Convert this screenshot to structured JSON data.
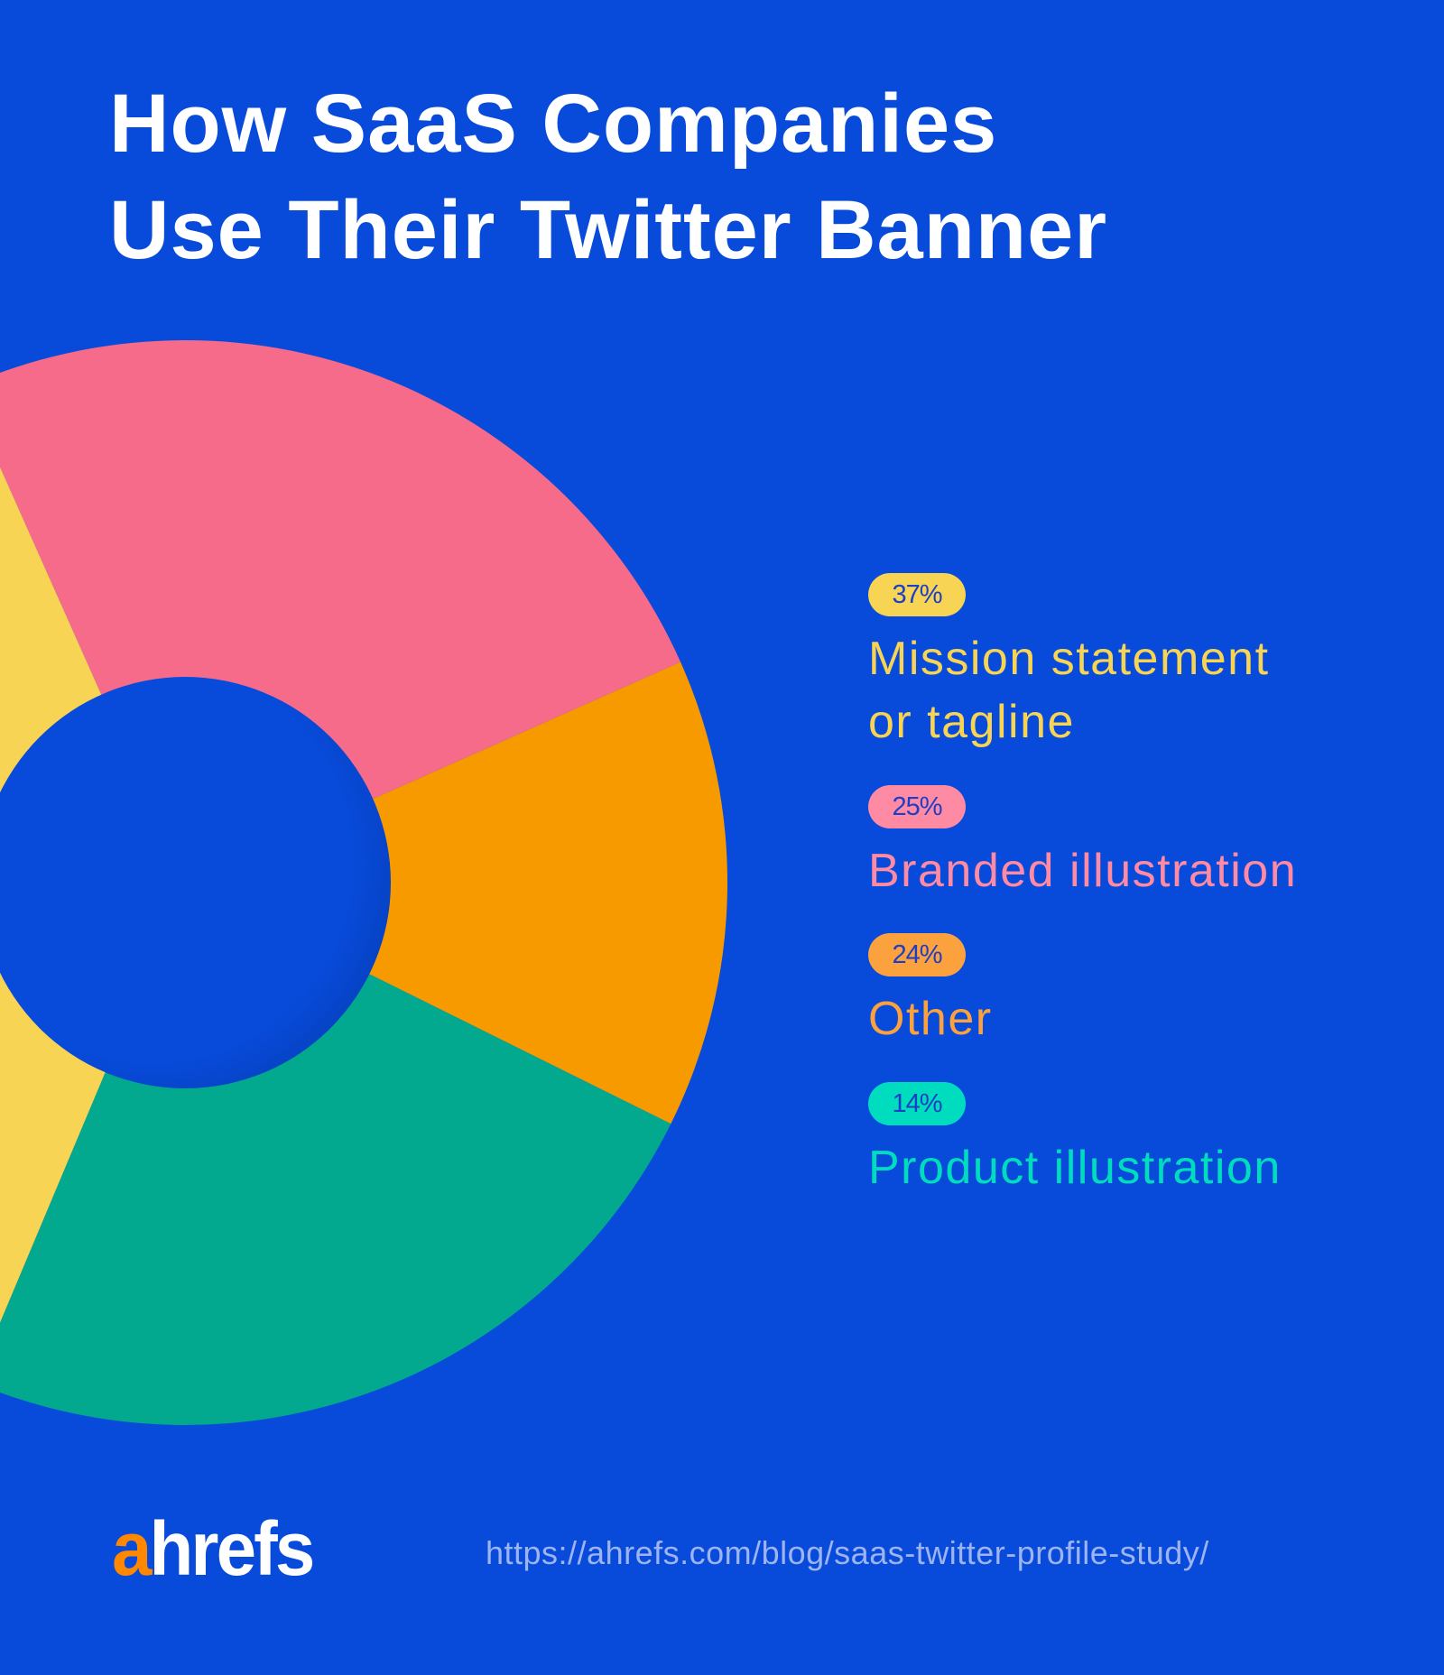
{
  "title": {
    "line1": "How SaaS Companies",
    "line2": "Use Their Twitter Banner"
  },
  "chart_data": {
    "type": "pie",
    "style": "donut",
    "title": "How SaaS Companies Use Their Twitter Banner",
    "legend_placement": "right",
    "slices_as_drawn_clockwise_from_top": [
      {
        "value": 25,
        "color": "#F76B8A"
      },
      {
        "value": 14,
        "color": "#F79A00"
      },
      {
        "value": 24,
        "color": "#02A98F"
      },
      {
        "value": 37,
        "color": "#F7D454"
      }
    ],
    "series": [
      {
        "name": "Mission statement or tagline",
        "value": 37,
        "label": "37%",
        "color": "#F7D454"
      },
      {
        "name": "Branded illustration",
        "value": 25,
        "label": "25%",
        "color": "#FF8AA3"
      },
      {
        "name": "Other",
        "value": 24,
        "label": "24%",
        "color": "#FBA23F"
      },
      {
        "name": "Product illustration",
        "value": 14,
        "label": "14%",
        "color": "#00DDBE"
      }
    ]
  },
  "legend": [
    {
      "badge": "37%",
      "line1": "Mission statement",
      "line2": "or tagline"
    },
    {
      "badge": "25%",
      "line1": "Branded illustration"
    },
    {
      "badge": "24%",
      "line1": "Other"
    },
    {
      "badge": "14%",
      "line1": "Product illustration"
    }
  ],
  "footer": {
    "logo": "ahrefs",
    "logo_a": "a",
    "logo_rest": "hrefs",
    "url": "https://ahrefs.com/blog/saas-twitter-profile-study/"
  },
  "colors": {
    "background": "#084BDB",
    "badge_text": "#1D3FC6",
    "logo_accent": "#FF8800"
  }
}
